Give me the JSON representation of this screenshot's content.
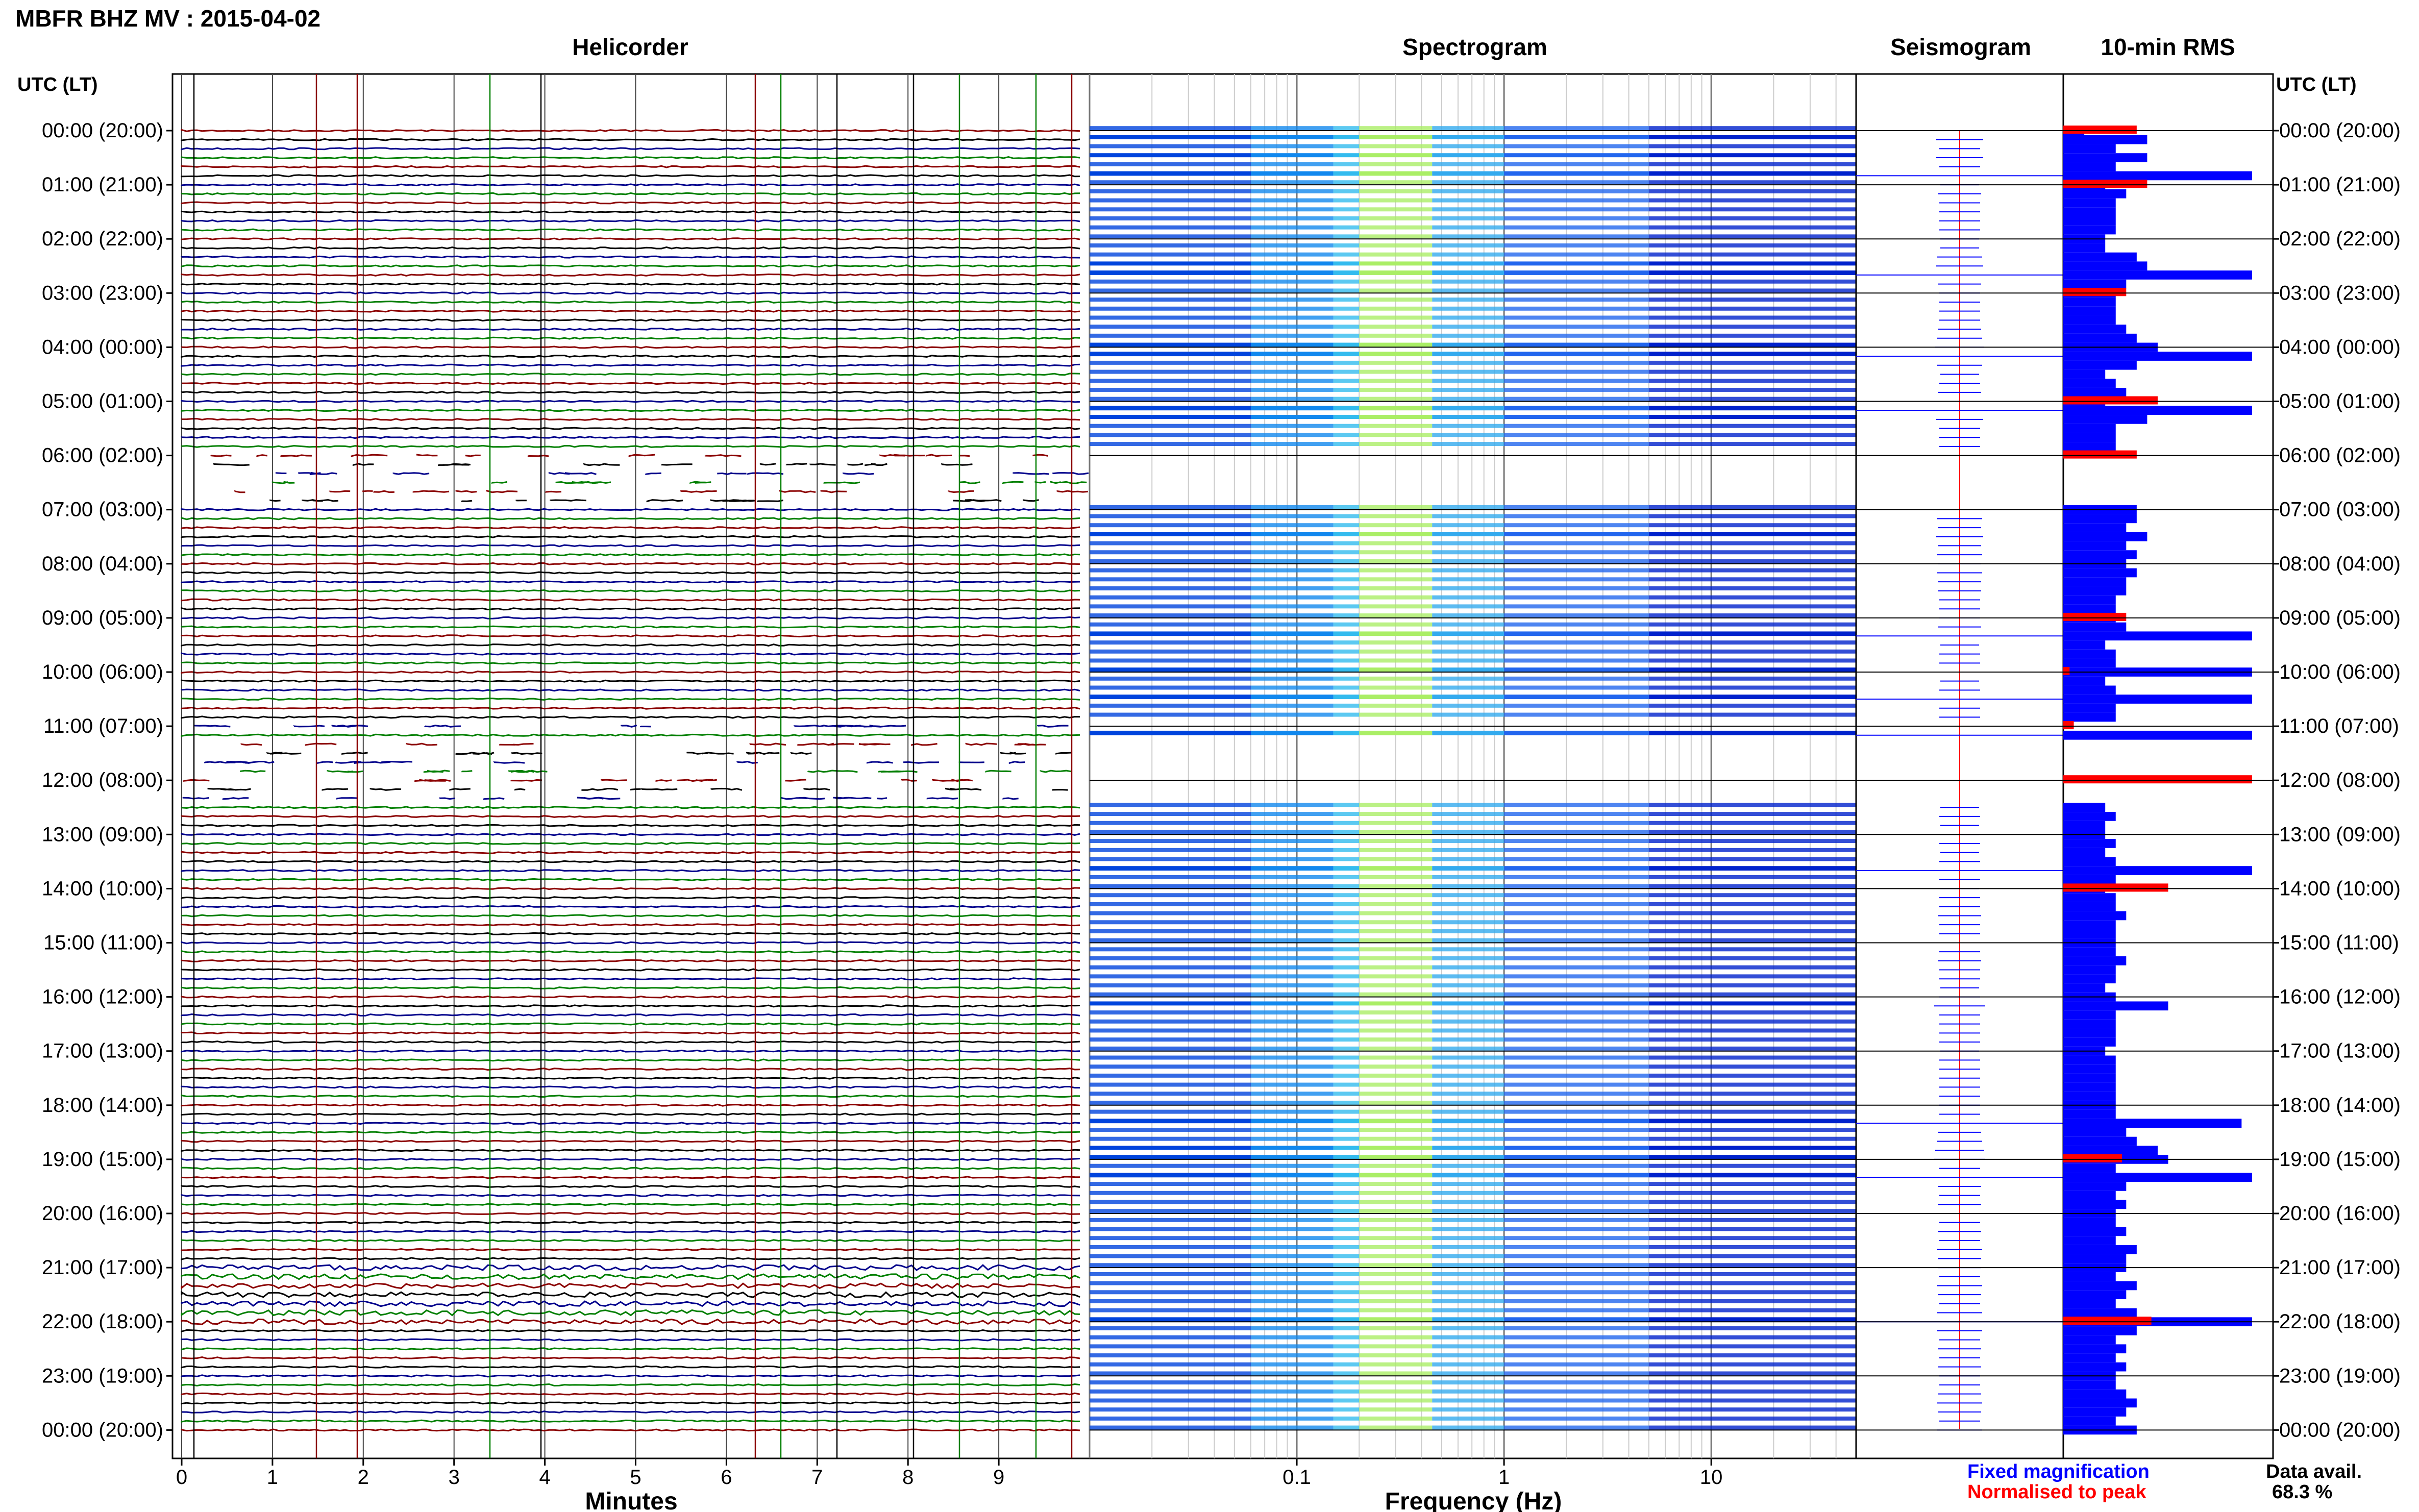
{
  "header": {
    "title": "MBFR BHZ MV : 2015-04-02"
  },
  "panels": {
    "helicorder": "Helicorder",
    "spectrogram": "Spectrogram",
    "seismogram": "Seismogram",
    "rms": "10-min RMS"
  },
  "axis_labels": {
    "time_left": "UTC (LT)",
    "time_right": "UTC (LT)",
    "minutes": "Minutes",
    "frequency": "Frequency (Hz)"
  },
  "legend": {
    "fixed": "Fixed magnification",
    "normalised": "Normalised to peak",
    "fixed_color": "#0000ff",
    "normalised_color": "#ff0000"
  },
  "data_avail": {
    "label": "Data avail.",
    "value": "68.3 %"
  },
  "colors": {
    "trace_black": "#000000",
    "trace_blue": "#00008b",
    "trace_green": "#007f00",
    "trace_red": "#8b0000",
    "rms_bar": "#0000ff",
    "rms_peak": "#ff0000"
  },
  "chart_data": {
    "type": "heatmap",
    "time_labels": [
      "00:00 (20:00)",
      "01:00 (21:00)",
      "02:00 (22:00)",
      "03:00 (23:00)",
      "04:00 (00:00)",
      "05:00 (01:00)",
      "06:00 (02:00)",
      "07:00 (03:00)",
      "08:00 (04:00)",
      "09:00 (05:00)",
      "10:00 (06:00)",
      "11:00 (07:00)",
      "12:00 (08:00)",
      "13:00 (09:00)",
      "14:00 (10:00)",
      "15:00 (11:00)",
      "16:00 (12:00)",
      "17:00 (13:00)",
      "18:00 (14:00)",
      "19:00 (15:00)",
      "20:00 (16:00)",
      "21:00 (17:00)",
      "22:00 (18:00)",
      "23:00 (19:00)",
      "00:00 (20:00)"
    ],
    "minutes_ticks": [
      "0",
      "1",
      "2",
      "3",
      "4",
      "5",
      "6",
      "7",
      "8",
      "9"
    ],
    "frequency_ticks": [
      {
        "value": 0.1,
        "label": "0.1"
      },
      {
        "value": 1,
        "label": "1"
      },
      {
        "value": 10,
        "label": "10"
      }
    ],
    "frequency_range": [
      0.01,
      50
    ],
    "rms_10min": [
      0.1,
      0.4,
      0.25,
      0.4,
      0.25,
      0.9,
      0.2,
      0.3,
      0.25,
      0.25,
      0.25,
      0.25,
      0.2,
      0.2,
      0.35,
      0.4,
      0.9,
      0.3,
      0.25,
      0.25,
      0.25,
      0.25,
      0.3,
      0.35,
      0.45,
      0.9,
      0.35,
      0.2,
      0.25,
      0.3,
      0.2,
      0.9,
      0.4,
      0.25,
      0.25,
      0.25,
      0.0,
      0.0,
      0.0,
      0.0,
      0.0,
      0.0,
      0.35,
      0.35,
      0.3,
      0.4,
      0.3,
      0.35,
      0.3,
      0.35,
      0.3,
      0.3,
      0.25,
      0.25,
      0.25,
      0.3,
      0.9,
      0.2,
      0.25,
      0.25,
      0.9,
      0.2,
      0.25,
      0.9,
      0.25,
      0.25,
      0.0,
      0.9,
      0.0,
      0.0,
      0.0,
      0.0,
      0.0,
      0.0,
      0.0,
      0.2,
      0.25,
      0.2,
      0.2,
      0.25,
      0.2,
      0.25,
      0.9,
      0.25,
      0.2,
      0.25,
      0.25,
      0.3,
      0.25,
      0.25,
      0.25,
      0.25,
      0.3,
      0.25,
      0.25,
      0.2,
      0.25,
      0.5,
      0.25,
      0.25,
      0.25,
      0.25,
      0.2,
      0.25,
      0.25,
      0.25,
      0.25,
      0.25,
      0.25,
      0.25,
      0.85,
      0.3,
      0.35,
      0.45,
      0.5,
      0.25,
      0.9,
      0.3,
      0.25,
      0.3,
      0.25,
      0.25,
      0.3,
      0.25,
      0.35,
      0.3,
      0.3,
      0.25,
      0.35,
      0.3,
      0.25,
      0.35,
      0.9,
      0.35,
      0.25,
      0.3,
      0.25,
      0.3,
      0.25,
      0.25,
      0.3,
      0.35,
      0.3,
      0.25,
      0.35
    ],
    "rms_peak_normalised": [
      {
        "row": 0,
        "value": 0.35
      },
      {
        "row": 1,
        "value": 0.4
      },
      {
        "row": 3,
        "value": 0.3
      },
      {
        "row": 5,
        "value": 0.45
      },
      {
        "row": 6,
        "value": 0.35
      },
      {
        "row": 9,
        "value": 0.3
      },
      {
        "row": 10,
        "value": 0.03
      },
      {
        "row": 11,
        "value": 0.05
      },
      {
        "row": 12,
        "value": 0.9
      },
      {
        "row": 14,
        "value": 0.5
      },
      {
        "row": 19,
        "value": 0.28
      },
      {
        "row": 22,
        "value": 0.42
      }
    ]
  }
}
